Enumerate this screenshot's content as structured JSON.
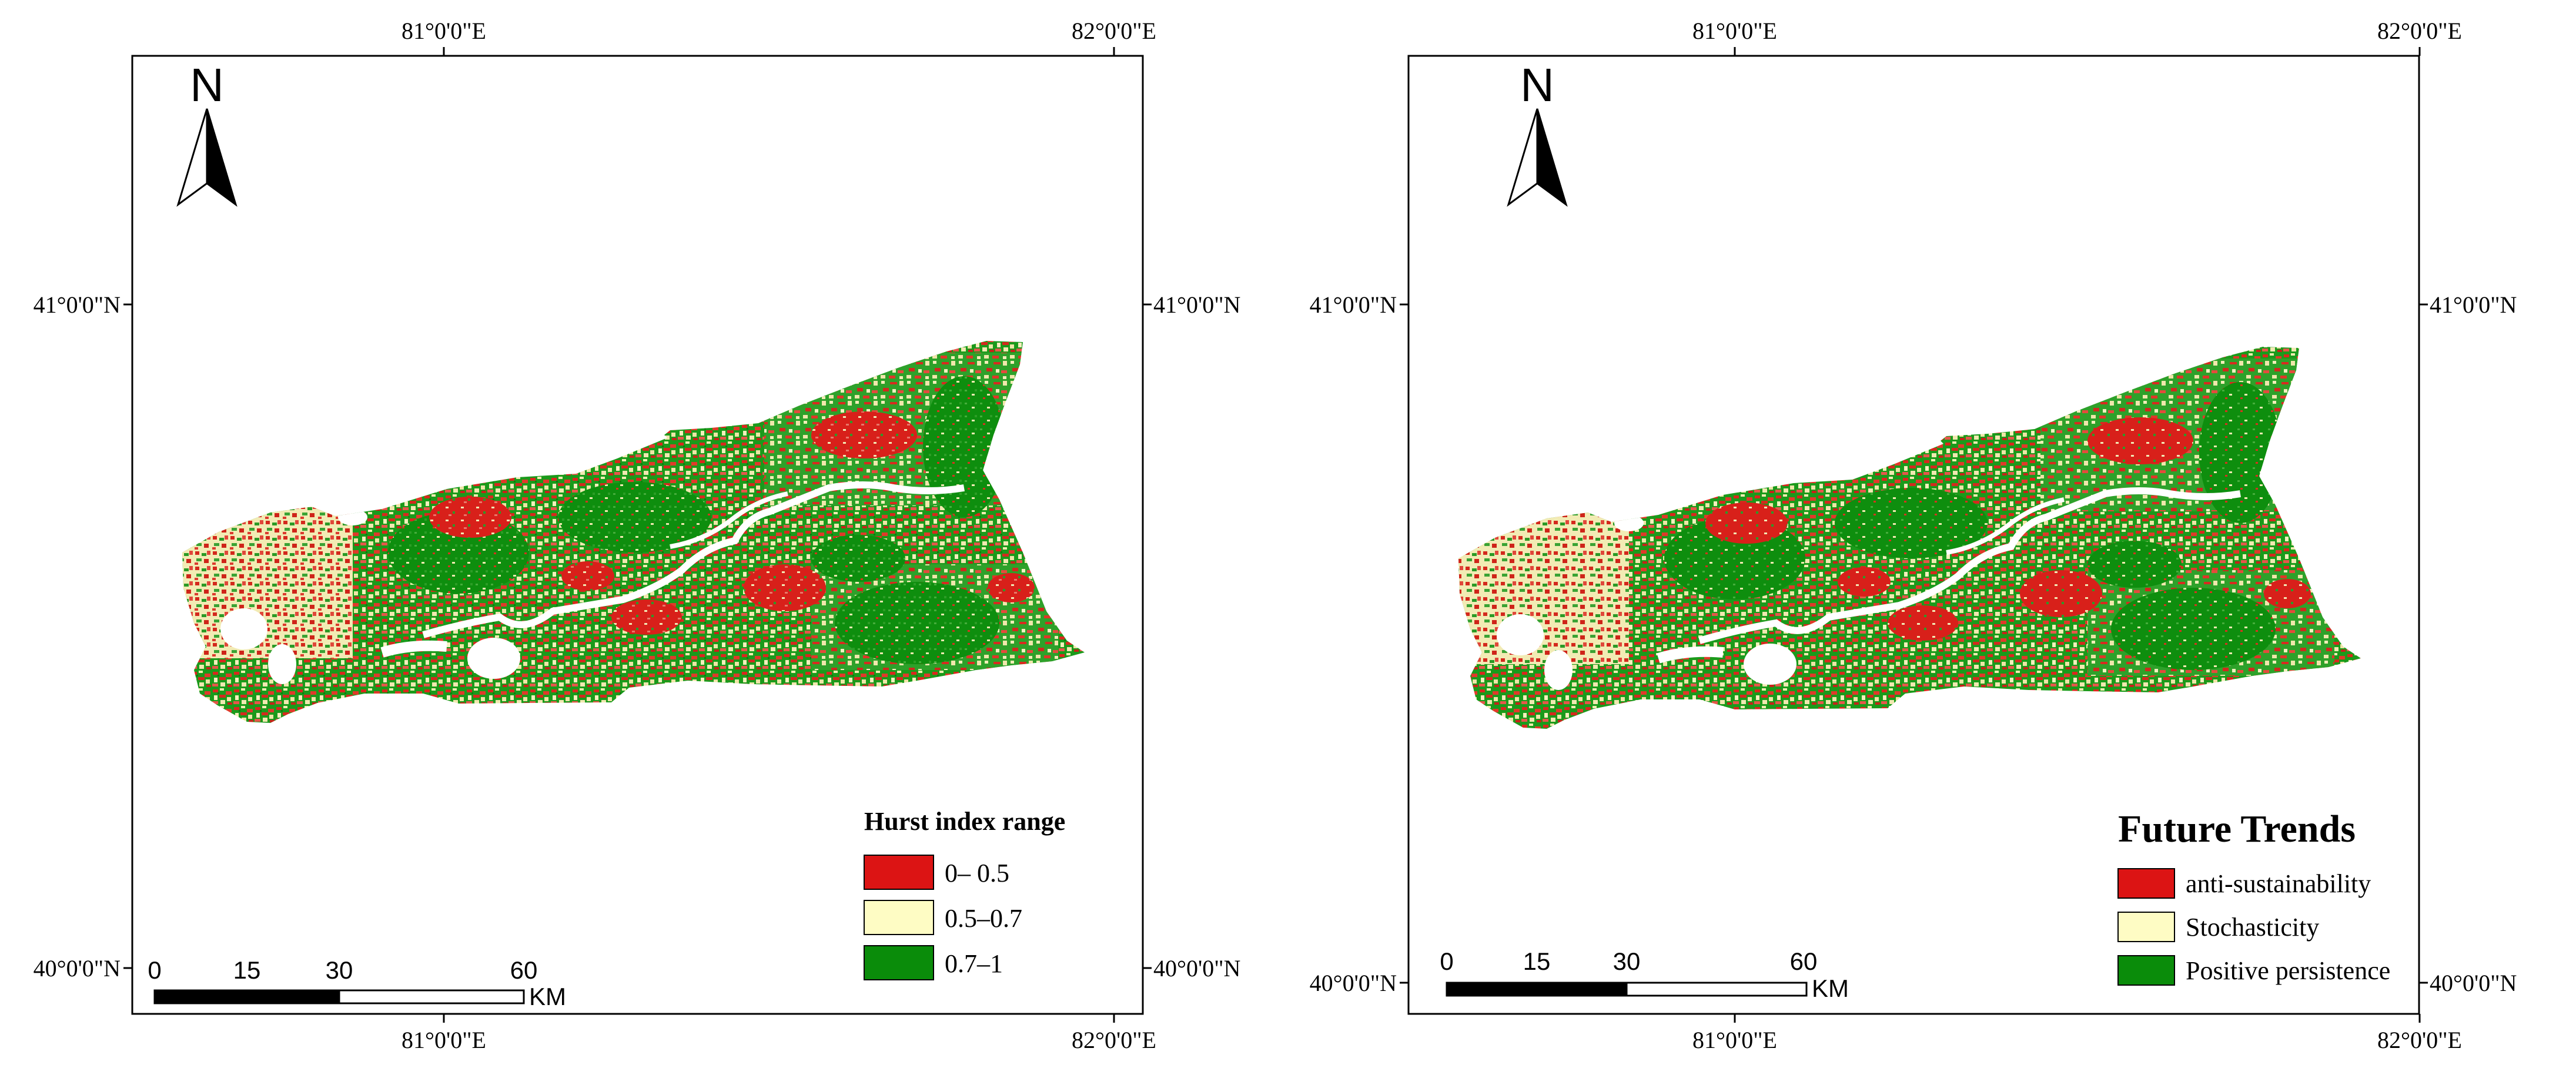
{
  "maps": [
    {
      "axis_labels": {
        "top": [
          "81°0'0\"E",
          "82°0'0\"E"
        ],
        "bottom": [
          "81°0'0\"E",
          "82°0'0\"E"
        ],
        "left": [
          "41°0'0\"N",
          "40°0'0\"N"
        ],
        "right": [
          "41°0'0\"N",
          "40°0'0\"N"
        ]
      },
      "north_arrow": {
        "label": "N"
      },
      "scale_bar": {
        "ticks": [
          "0",
          "15",
          "30",
          "60"
        ],
        "unit": "KM"
      },
      "legend": {
        "title": "Hurst index range",
        "items": [
          {
            "label": "0– 0.5",
            "color": "#dc1414"
          },
          {
            "label": "0.5–0.7",
            "color": "#fefcc4"
          },
          {
            "label": "0.7–1",
            "color": "#0a8c0a"
          }
        ]
      }
    },
    {
      "axis_labels": {
        "top": [
          "81°0'0\"E",
          "82°0'0\"E"
        ],
        "bottom": [
          "81°0'0\"E",
          "82°0'0\"E"
        ],
        "left": [
          "41°0'0\"N",
          "40°0'0\"N"
        ],
        "right": [
          "41°0'0\"N",
          "40°0'0\"N"
        ]
      },
      "north_arrow": {
        "label": "N"
      },
      "scale_bar": {
        "ticks": [
          "0",
          "15",
          "30",
          "60"
        ],
        "unit": "KM"
      },
      "legend": {
        "title": "Future Trends",
        "items": [
          {
            "label": "anti-sustainability",
            "color": "#dc1414"
          },
          {
            "label": "Stochasticity",
            "color": "#fefcc4"
          },
          {
            "label": "Positive persistence",
            "color": "#0a8c0a"
          }
        ]
      }
    }
  ]
}
